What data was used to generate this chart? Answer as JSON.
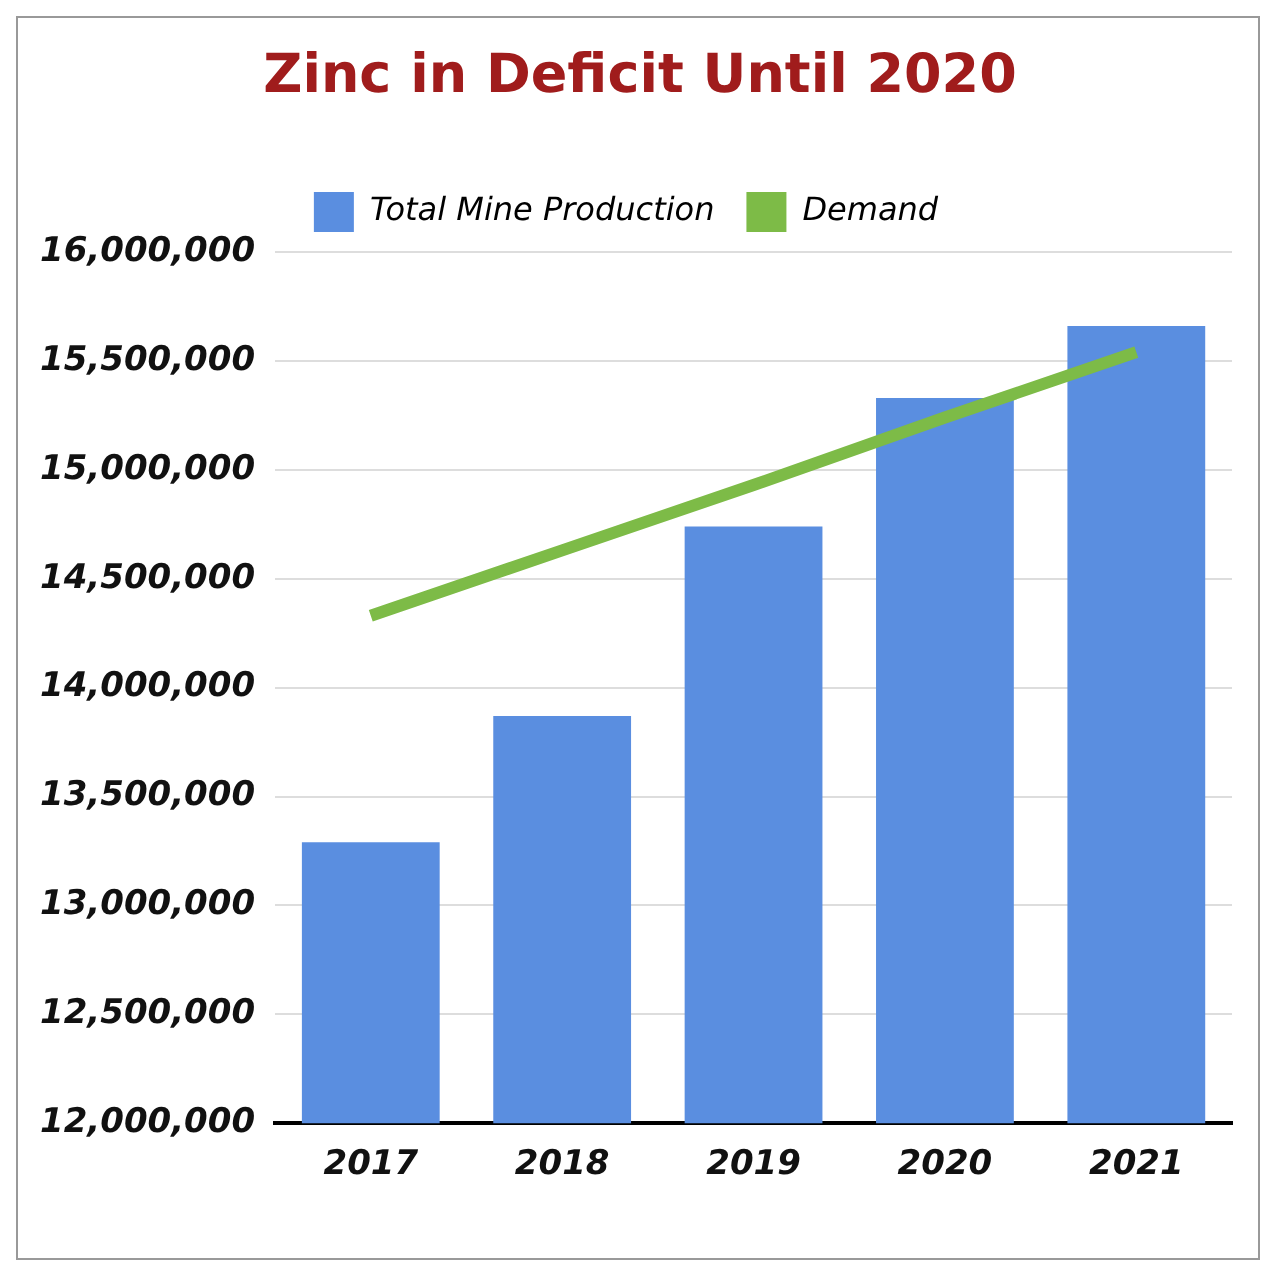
{
  "chart_data": {
    "type": "bar",
    "title": "Zinc in Deficit Until 2020",
    "categories": [
      "2017",
      "2018",
      "2019",
      "2020",
      "2021"
    ],
    "series": [
      {
        "name": "Total Mine Production",
        "color": "#5a8ee0",
        "values": [
          13290000,
          13870000,
          14740000,
          15330000,
          15660000
        ]
      },
      {
        "name": "Demand",
        "type": "line",
        "color": "#7dbb47",
        "values": [
          14330000,
          14630000,
          14930000,
          15240000,
          15540000
        ]
      }
    ],
    "ylim": [
      12000000,
      16000000
    ],
    "yticks": [
      {
        "value": 12000000,
        "label": "12,000,000"
      },
      {
        "value": 12500000,
        "label": "12,500,000"
      },
      {
        "value": 13000000,
        "label": "13,000,000"
      },
      {
        "value": 13500000,
        "label": "13,500,000"
      },
      {
        "value": 14000000,
        "label": "14,000,000"
      },
      {
        "value": 14500000,
        "label": "14,500,000"
      },
      {
        "value": 15000000,
        "label": "15,000,000"
      },
      {
        "value": 15500000,
        "label": "15,500,000"
      },
      {
        "value": 16000000,
        "label": "16,000,000"
      }
    ],
    "grid": "y",
    "legend": "top",
    "marker": "none"
  }
}
